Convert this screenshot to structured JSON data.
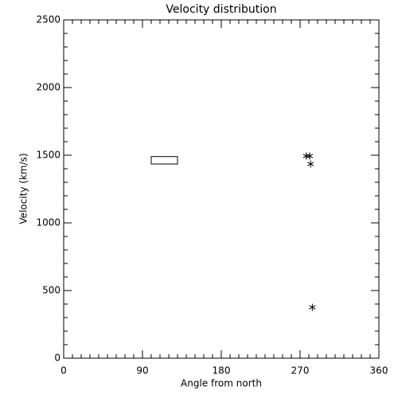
{
  "chart_data": {
    "type": "scatter",
    "title": "Velocity distribution",
    "x_label": "Angle from north",
    "y_label": "Velocity (km/s)",
    "xlim": [
      0,
      360
    ],
    "xticks": [
      0,
      90,
      180,
      270,
      360
    ],
    "ylim": [
      0,
      2500
    ],
    "yticks": [
      0,
      500,
      1000,
      1500,
      2000,
      2500
    ],
    "series": [
      {
        "color": "#000000",
        "x": [
          277,
          281,
          282,
          284
        ],
        "values": [
          1494,
          1494,
          1435,
          376
        ]
      }
    ],
    "regions": [
      {
        "x": [
          100,
          130
        ],
        "y": [
          1435,
          1490
        ]
      }
    ]
  }
}
